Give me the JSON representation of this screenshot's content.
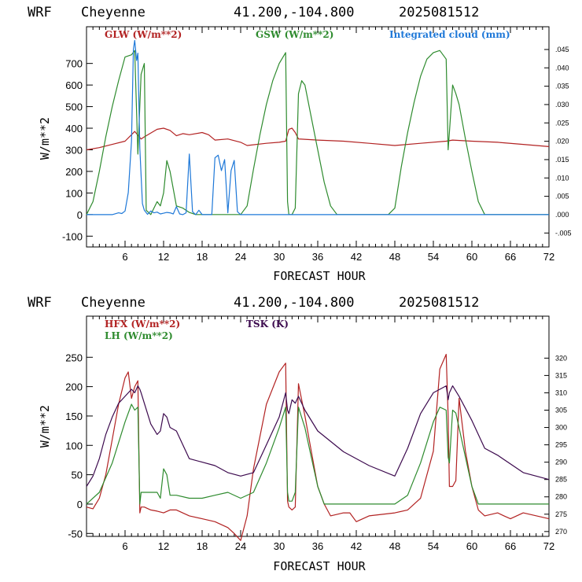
{
  "header": {
    "model": "WRF",
    "location": "Cheyenne",
    "coords": "41.200,-104.800",
    "run": "2025081512"
  },
  "chart_data": [
    {
      "type": "line",
      "xlabel": "FORECAST HOUR",
      "ylabel": "W/m**2",
      "xlim": [
        0,
        72
      ],
      "ylim": [
        -150,
        870
      ],
      "xticks": [
        6,
        12,
        18,
        24,
        30,
        36,
        42,
        48,
        54,
        60,
        66,
        72
      ],
      "yticks": [
        -100,
        0,
        100,
        200,
        300,
        400,
        500,
        600,
        700
      ],
      "y2lim": [
        -0.0088,
        0.0512
      ],
      "y2ticks": [
        -0.005,
        0.0,
        0.005,
        0.01,
        0.015,
        0.02,
        0.025,
        0.03,
        0.035,
        0.04,
        0.045
      ],
      "y2ticklabels": [
        "-.005",
        ".000",
        ".005",
        ".010",
        ".015",
        ".020",
        ".025",
        ".030",
        ".035",
        ".040",
        ".045"
      ],
      "series": [
        {
          "name": "GLW (W/m**2)",
          "color": "#b22222",
          "axis": "left",
          "x": [
            0,
            2,
            4,
            6,
            7,
            7.5,
            8.5,
            9,
            11,
            12,
            13,
            14,
            15,
            16,
            18,
            19,
            20,
            22,
            24,
            25,
            28,
            30,
            31,
            31.5,
            32,
            32.5,
            33,
            36,
            40,
            44,
            48,
            52,
            56,
            57,
            60,
            64,
            68,
            72
          ],
          "y": [
            300,
            310,
            325,
            340,
            370,
            385,
            350,
            360,
            395,
            400,
            390,
            365,
            375,
            370,
            380,
            370,
            345,
            350,
            335,
            320,
            330,
            335,
            340,
            395,
            400,
            380,
            350,
            345,
            340,
            330,
            320,
            330,
            340,
            345,
            340,
            335,
            325,
            315
          ]
        },
        {
          "name": "GSW (W/m**2)",
          "color": "#2e8b2e",
          "axis": "left",
          "x": [
            0,
            1,
            2,
            3,
            4,
            5,
            6,
            7,
            7.5,
            8,
            8.5,
            9,
            9.3,
            10,
            11,
            11.5,
            12,
            12.5,
            13,
            14,
            15,
            16,
            17,
            18,
            19,
            20,
            21,
            22,
            23,
            24,
            25,
            26,
            27,
            28,
            29,
            30,
            31,
            31.3,
            31.5,
            32,
            32.5,
            33,
            33.5,
            34,
            35,
            36,
            37,
            38,
            39,
            47,
            48,
            49,
            50,
            51,
            52,
            53,
            54,
            55,
            56,
            56.3,
            56.5,
            57,
            57.5,
            58,
            59,
            60,
            61,
            62,
            72
          ],
          "y": [
            0,
            60,
            200,
            360,
            500,
            620,
            730,
            740,
            760,
            280,
            650,
            700,
            20,
            0,
            60,
            40,
            100,
            250,
            200,
            40,
            30,
            10,
            0,
            0,
            0,
            0,
            0,
            0,
            0,
            0,
            40,
            210,
            370,
            510,
            620,
            700,
            750,
            60,
            0,
            0,
            30,
            560,
            620,
            600,
            450,
            300,
            150,
            40,
            0,
            0,
            30,
            220,
            380,
            520,
            640,
            720,
            750,
            760,
            720,
            300,
            380,
            600,
            560,
            510,
            350,
            200,
            60,
            0,
            0
          ]
        },
        {
          "name": "Integrated cloud (mm)",
          "color": "#1e78d8",
          "axis": "right",
          "x": [
            0,
            4,
            5,
            5.5,
            6,
            6.5,
            7,
            7.3,
            7.5,
            7.8,
            8,
            8.3,
            8.7,
            9,
            9.5,
            10,
            10.5,
            11,
            11.5,
            12,
            12.5,
            13,
            13.5,
            14,
            14.5,
            15,
            15.5,
            16,
            16.5,
            17,
            17.5,
            18,
            18.5,
            19,
            19.5,
            20,
            20.5,
            21,
            21.5,
            22,
            22.5,
            23,
            23.5,
            24,
            72
          ],
          "y": [
            0,
            0,
            0.0005,
            0.0003,
            0.001,
            0.006,
            0.02,
            0.045,
            0.0475,
            0.042,
            0.044,
            0.018,
            0.003,
            0.0012,
            0.0001,
            0.001,
            0.0005,
            0.0007,
            0.0002,
            0.0004,
            0.0006,
            0.0005,
            0.0002,
            0.0022,
            0.0002,
            0,
            0.0005,
            0.0165,
            0.0008,
            0,
            0.0012,
            0,
            0,
            0,
            0,
            0.0155,
            0.0162,
            0.012,
            0.015,
            0.0005,
            0.012,
            0.0148,
            0.0008,
            0,
            0
          ]
        }
      ]
    },
    {
      "type": "line",
      "xlabel": "FORECAST HOUR",
      "ylabel": "W/m**2",
      "xlim": [
        0,
        72
      ],
      "ylim": [
        -55,
        320
      ],
      "xticks": [
        6,
        12,
        18,
        24,
        30,
        36,
        42,
        48,
        54,
        60,
        66,
        72
      ],
      "yticks": [
        -50,
        0,
        50,
        100,
        150,
        200,
        250
      ],
      "y2lim": [
        268.6,
        332.1
      ],
      "y2ticks": [
        270,
        275,
        280,
        285,
        290,
        295,
        300,
        305,
        310,
        315,
        320
      ],
      "y2ticklabels": [
        "270",
        "275",
        "280",
        "285",
        "290",
        "295",
        "300",
        "305",
        "310",
        "315",
        "320"
      ],
      "series": [
        {
          "name": "HFX (W/m**2)",
          "color": "#b22222",
          "axis": "left",
          "x": [
            0,
            1,
            2,
            3,
            4,
            5,
            6,
            6.5,
            7,
            7.5,
            8,
            8.3,
            8.5,
            9,
            10,
            11,
            12,
            13,
            14,
            16,
            18,
            20,
            22,
            23,
            24,
            25,
            26,
            28,
            30,
            31,
            31.3,
            31.5,
            32,
            32.5,
            33,
            34,
            35,
            36,
            37,
            38,
            40,
            41,
            42,
            44,
            48,
            50,
            52,
            54,
            55,
            56,
            56.3,
            56.5,
            57,
            57.5,
            58,
            59,
            60,
            61,
            62,
            64,
            65,
            66,
            68,
            72
          ],
          "y": [
            -5,
            -8,
            10,
            50,
            110,
            170,
            215,
            225,
            180,
            200,
            210,
            -15,
            -5,
            -5,
            -10,
            -12,
            -15,
            -10,
            -10,
            -20,
            -25,
            -30,
            -40,
            -50,
            -62,
            -20,
            60,
            170,
            225,
            240,
            5,
            -5,
            -10,
            -5,
            205,
            150,
            90,
            30,
            0,
            -20,
            -15,
            -15,
            -30,
            -20,
            -15,
            -10,
            10,
            90,
            230,
            255,
            150,
            30,
            30,
            40,
            180,
            90,
            30,
            -10,
            -20,
            -15,
            -20,
            -25,
            -15,
            -25
          ]
        },
        {
          "name": "LH (W/m**2)",
          "color": "#2e8b2e",
          "axis": "left",
          "x": [
            0,
            2,
            4,
            6,
            7,
            7.5,
            8,
            8.3,
            8.5,
            9,
            10,
            11,
            11.5,
            12,
            12.5,
            13,
            14,
            16,
            18,
            20,
            22,
            24,
            26,
            28,
            30,
            31,
            31.3,
            31.5,
            32,
            32.5,
            33,
            34,
            35,
            36,
            37,
            38,
            40,
            44,
            48,
            50,
            52,
            54,
            55,
            56,
            56.3,
            56.5,
            57,
            57.5,
            58,
            59,
            60,
            61,
            62,
            66,
            72
          ],
          "y": [
            0,
            20,
            70,
            140,
            170,
            160,
            165,
            0,
            20,
            20,
            20,
            20,
            10,
            60,
            50,
            15,
            15,
            10,
            10,
            15,
            20,
            10,
            20,
            70,
            130,
            165,
            20,
            5,
            5,
            20,
            165,
            130,
            80,
            30,
            0,
            0,
            0,
            0,
            0,
            15,
            70,
            140,
            165,
            160,
            80,
            70,
            160,
            155,
            130,
            80,
            30,
            0,
            0,
            0,
            0
          ]
        },
        {
          "name": "TSK (K)",
          "color": "#3c0a4e",
          "axis": "right",
          "x": [
            0,
            1,
            2,
            3,
            4,
            5,
            6,
            7,
            7.5,
            8,
            8.3,
            8.5,
            9,
            10,
            11,
            11.5,
            12,
            12.5,
            13,
            14,
            16,
            18,
            20,
            22,
            24,
            26,
            28,
            30,
            31,
            31.3,
            31.5,
            32,
            32.5,
            33,
            34,
            36,
            40,
            44,
            48,
            50,
            52,
            54,
            56,
            56.3,
            56.5,
            57,
            58,
            60,
            62,
            64,
            68,
            72
          ],
          "y": [
            283,
            286,
            291,
            298,
            303,
            307,
            309,
            311,
            310,
            312,
            311,
            310,
            307,
            301,
            298,
            299,
            304,
            303,
            300,
            299,
            291,
            290,
            289,
            287,
            286,
            287,
            295,
            303,
            310,
            305,
            304,
            308,
            307,
            309,
            305,
            299,
            293,
            289,
            286,
            294,
            304,
            310,
            312,
            308,
            310,
            312,
            309,
            302,
            294,
            292,
            287,
            285
          ]
        }
      ]
    }
  ]
}
